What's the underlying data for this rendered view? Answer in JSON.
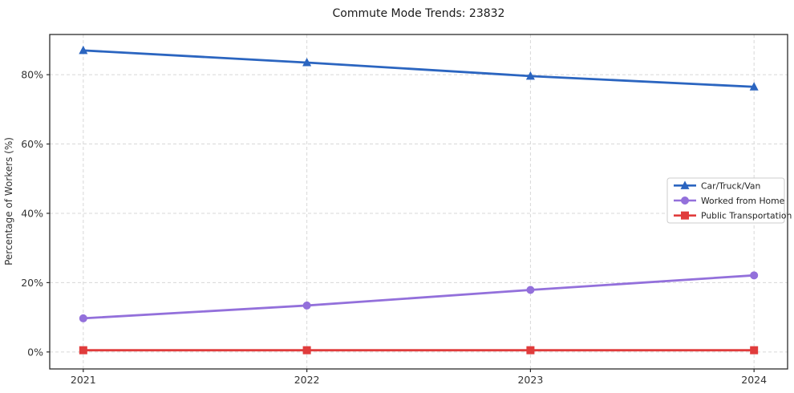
{
  "chart_data": {
    "type": "line",
    "title": "Commute Mode Trends: 23832",
    "xlabel": "",
    "ylabel": "Percentage of Workers (%)",
    "x": [
      2021,
      2022,
      2023,
      2024
    ],
    "x_tick_labels": [
      "2021",
      "2022",
      "2023",
      "2024"
    ],
    "y_ticks": [
      0,
      20,
      40,
      60,
      80
    ],
    "y_tick_labels": [
      "0%",
      "20%",
      "40%",
      "60%",
      "80%"
    ],
    "xlim": [
      2020.85,
      2024.15
    ],
    "ylim": [
      -4.9,
      91.6
    ],
    "grid": true,
    "grid_style": "dashed",
    "legend_position": "center right",
    "series": [
      {
        "name": "Car/Truck/Van",
        "color": "#2b65c0",
        "marker": "triangle",
        "values": [
          87.0,
          83.5,
          79.6,
          76.5
        ]
      },
      {
        "name": "Worked from Home",
        "color": "#9370db",
        "marker": "circle",
        "values": [
          9.7,
          13.4,
          17.9,
          22.1
        ]
      },
      {
        "name": "Public Transportation",
        "color": "#e03c3c",
        "marker": "square",
        "values": [
          0.5,
          0.5,
          0.5,
          0.5
        ]
      }
    ],
    "colors": {
      "grid": "#d8d8d8",
      "frame": "#2b2b2b",
      "tick_text": "#333333",
      "title_text": "#1a1a1a",
      "legend_border": "#cccccc",
      "legend_bg": "#ffffff",
      "legend_text": "#222222"
    }
  }
}
